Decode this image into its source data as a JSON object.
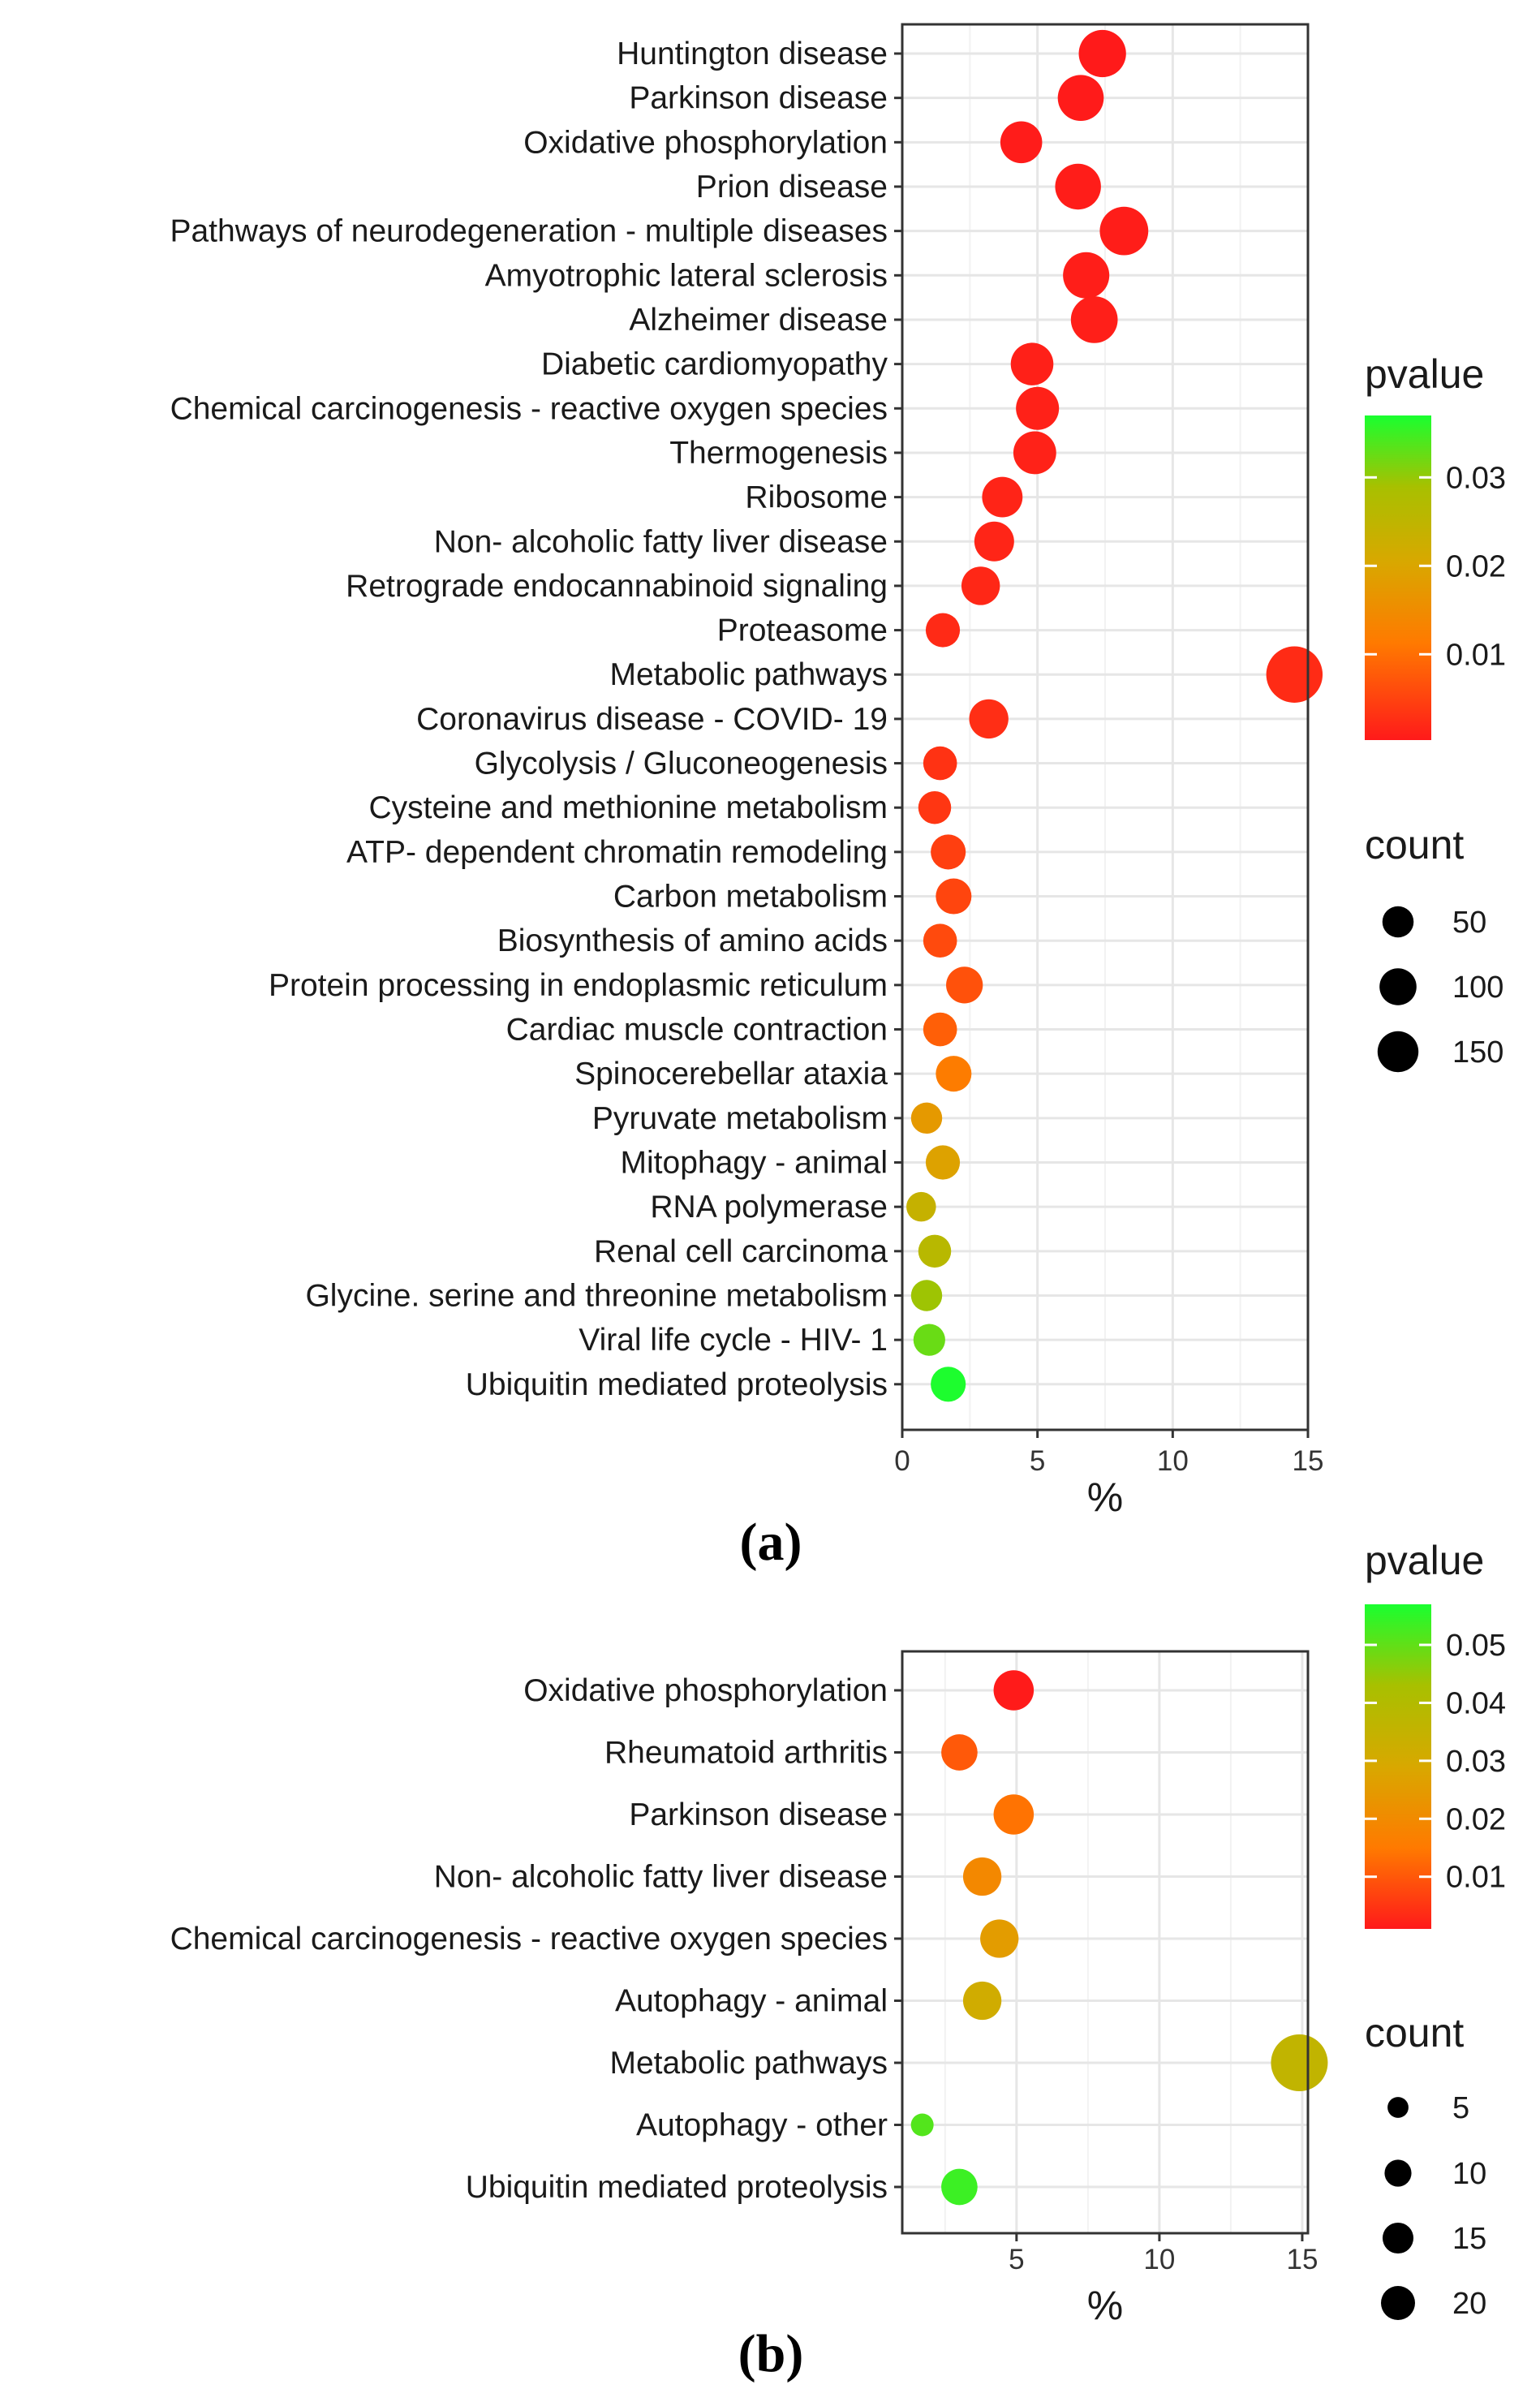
{
  "chart_data": [
    {
      "type": "scatter",
      "panel_label": "(a)",
      "xlabel": "%",
      "ylabel": "",
      "xlim": [
        0,
        15
      ],
      "x_ticks": [
        0,
        5,
        10,
        15
      ],
      "grid": true,
      "categories": [
        "Huntington disease",
        "Parkinson disease",
        "Oxidative phosphorylation",
        "Prion disease",
        "Pathways of neurodegeneration -  multiple diseases",
        "Amyotrophic lateral sclerosis",
        "Alzheimer disease",
        "Diabetic cardiomyopathy",
        "Chemical carcinogenesis -  reactive oxygen species",
        "Thermogenesis",
        "Ribosome",
        "Non- alcoholic fatty liver disease",
        "Retrograde endocannabinoid signaling",
        "Proteasome",
        "Metabolic pathways",
        "Coronavirus disease -  COVID- 19",
        "Glycolysis / Gluconeogenesis",
        "Cysteine and methionine metabolism",
        "ATP- dependent chromatin remodeling",
        "Carbon metabolism",
        "Biosynthesis of amino acids",
        "Protein processing in endoplasmic reticulum",
        "Cardiac muscle contraction",
        "Spinocerebellar ataxia",
        "Pyruvate metabolism",
        "Mitophagy -  animal",
        "RNA polymerase",
        "Renal cell carcinoma",
        "Glycine. serine and threonine metabolism",
        "Viral life cycle -  HIV- 1",
        "Ubiquitin mediated proteolysis"
      ],
      "x": [
        7.4,
        6.6,
        4.4,
        6.5,
        8.2,
        6.8,
        7.1,
        4.8,
        5.0,
        4.9,
        3.7,
        3.4,
        2.9,
        1.5,
        14.5,
        3.2,
        1.4,
        1.2,
        1.7,
        1.9,
        1.4,
        2.3,
        1.4,
        1.9,
        0.9,
        1.5,
        0.7,
        1.2,
        0.9,
        1.0,
        1.7
      ],
      "count": [
        72,
        64,
        42,
        63,
        80,
        66,
        69,
        46,
        48,
        47,
        36,
        33,
        28,
        15,
        141,
        31,
        14,
        12,
        17,
        19,
        14,
        22,
        14,
        19,
        9,
        15,
        7,
        12,
        9,
        10,
        17
      ],
      "pvalue": [
        0.0003,
        0.0004,
        0.0005,
        0.0006,
        0.0007,
        0.0008,
        0.0009,
        0.001,
        0.0011,
        0.0012,
        0.0014,
        0.0016,
        0.0018,
        0.0021,
        0.0023,
        0.0026,
        0.0031,
        0.0035,
        0.0045,
        0.0052,
        0.0058,
        0.0066,
        0.0082,
        0.0118,
        0.0175,
        0.0192,
        0.0238,
        0.0262,
        0.0295,
        0.0325,
        0.0368
      ],
      "color_legend": {
        "title": "pvalue",
        "ticks": [
          0.01,
          0.02,
          0.03
        ],
        "ticks_text": [
          "0.01",
          "0.02",
          "0.03"
        ],
        "range": [
          0.0003,
          0.037
        ]
      },
      "size_legend": {
        "title": "count",
        "values": [
          50,
          100,
          150
        ],
        "labels": [
          "50",
          "100",
          "150"
        ]
      }
    },
    {
      "type": "scatter",
      "panel_label": "(b)",
      "xlabel": "%",
      "ylabel": "",
      "xlim": [
        1,
        15.2
      ],
      "x_ticks": [
        5,
        10,
        15
      ],
      "grid": true,
      "categories": [
        "Oxidative phosphorylation",
        "Rheumatoid arthritis",
        "Parkinson disease",
        "Non- alcoholic fatty liver disease",
        "Chemical carcinogenesis -  reactive oxygen species",
        "Autophagy -  animal",
        "Metabolic pathways",
        "Autophagy -  other",
        "Ubiquitin mediated proteolysis"
      ],
      "x": [
        4.9,
        3.0,
        4.9,
        3.8,
        4.4,
        3.8,
        14.9,
        1.7,
        3.0
      ],
      "count": [
        8,
        6,
        8,
        7,
        7,
        7,
        22,
        3,
        6
      ],
      "pvalue": [
        0.0012,
        0.012,
        0.0165,
        0.022,
        0.028,
        0.034,
        0.038,
        0.052,
        0.054
      ],
      "color_legend": {
        "title": "pvalue",
        "ticks": [
          0.01,
          0.02,
          0.03,
          0.04,
          0.05
        ],
        "ticks_text": [
          "0.01",
          "0.02",
          "0.03",
          "0.04",
          "0.05"
        ],
        "range": [
          0.001,
          0.057
        ]
      },
      "size_legend": {
        "title": "count",
        "values": [
          5,
          10,
          15,
          20
        ],
        "labels": [
          "5",
          "10",
          "15",
          "20"
        ]
      }
    }
  ],
  "colors": {
    "low_p": "#ff1a1a",
    "mid_p": "#c8b400",
    "high_p": "#19ff2f",
    "panel_border": "#333333",
    "grid": "#ebebeb",
    "marker_legend": "#000000"
  }
}
